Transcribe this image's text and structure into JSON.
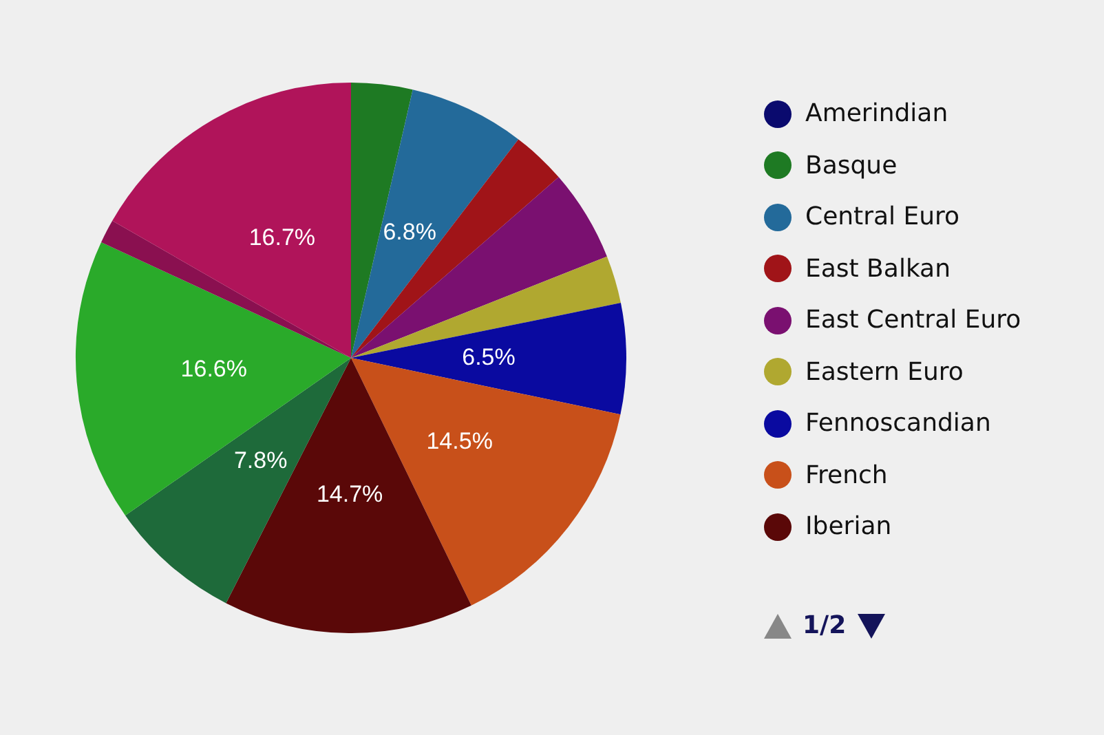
{
  "chart_data": {
    "type": "pie",
    "categories": [
      "Amerindian",
      "Basque",
      "Central Euro",
      "East Balkan",
      "East Central Euro",
      "Eastern Euro",
      "Fennoscandian",
      "French",
      "Iberian",
      null,
      null,
      null,
      null
    ],
    "values": [
      0,
      3.6,
      6.8,
      3.2,
      5.4,
      2.8,
      6.5,
      14.5,
      14.7,
      7.8,
      16.6,
      1.4,
      16.7
    ],
    "colors": [
      "#0a0a6e",
      "#1e7a23",
      "#236a9a",
      "#a01418",
      "#7a1070",
      "#b0a830",
      "#0a0aa0",
      "#c8501a",
      "#5a0808",
      "#1e6a3a",
      "#2aaa2a",
      "#8a1050",
      "#b0145a"
    ],
    "value_labels": [
      null,
      null,
      "6.8%",
      null,
      null,
      null,
      "6.5%",
      "14.5%",
      "14.7%",
      "7.8%",
      "16.6%",
      null,
      "16.7%"
    ],
    "legend": "right",
    "annotations": [
      "1/2"
    ]
  }
}
